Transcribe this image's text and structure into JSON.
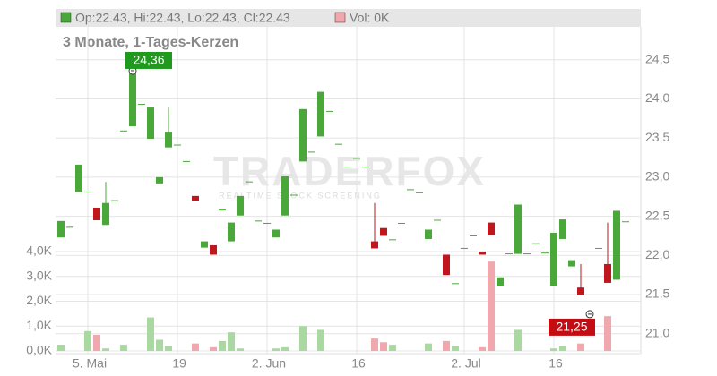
{
  "chart_data": {
    "type": "candlestick",
    "subtitle": "3 Monate, 1-Tages-Kerzen",
    "header": {
      "ohlc": "Op:22.43, Hi:22.43, Lo:22.43, Cl:22.43",
      "volume": "Vol: 0K"
    },
    "watermark": "TRADERFOX",
    "watermark_sub": "REALTIME STOCK SCREENING",
    "up_color": "#4aa83a",
    "down_color": "#c0161d",
    "up_volume_color": "#a9d9a0",
    "down_volume_color": "#f0a7ae",
    "categories": [
      null,
      null,
      null,
      "5. Mai",
      null,
      null,
      null,
      null,
      null,
      null,
      null,
      null,
      null,
      "19",
      null,
      null,
      null,
      null,
      null,
      null,
      null,
      null,
      null,
      "2. Jun",
      null,
      null,
      null,
      null,
      null,
      null,
      null,
      null,
      null,
      "16",
      null,
      null,
      null,
      null,
      null,
      null,
      null,
      null,
      null,
      null,
      null,
      "2. Jul",
      null,
      null,
      null,
      null,
      null,
      null,
      null,
      null,
      null,
      "16",
      null,
      null,
      null,
      null,
      null,
      null,
      null,
      null
    ],
    "open": [
      22.23,
      22.36,
      22.81,
      22.81,
      22.61,
      22.39,
      22.7,
      23.59,
      23.65,
      23.93,
      23.49,
      22.92,
      23.38,
      23.41,
      23.2,
      22.76,
      22.1,
      22.13,
      22.58,
      22.18,
      22.51,
      22.94,
      22.44,
      22.41,
      22.23,
      22.51,
      22.77,
      23.2,
      23.32,
      23.52,
      23.84,
      23.42,
      23.13,
      23.24,
      23.13,
      22.18,
      22.35,
      22.2,
      22.41,
      22.84,
      22.8,
      22.21,
      22.45,
      22.01,
      21.64,
      22.09,
      22.25,
      22.05,
      22.42,
      21.61,
      22.02,
      22.02,
      22.02,
      22.15,
      22.03,
      21.61,
      22.21,
      21.86,
      21.59,
      21.25,
      22.09,
      21.89,
      21.69,
      22.43
    ],
    "high": [
      22.44,
      22.36,
      23.16,
      22.81,
      22.61,
      22.94,
      22.7,
      23.59,
      24.36,
      23.93,
      23.89,
      23.0,
      23.89,
      23.41,
      23.2,
      22.76,
      22.18,
      22.13,
      22.58,
      22.42,
      22.76,
      22.94,
      22.44,
      22.41,
      22.33,
      23.01,
      22.77,
      23.87,
      23.32,
      24.09,
      23.84,
      23.42,
      23.13,
      23.24,
      23.13,
      22.67,
      22.35,
      22.2,
      22.41,
      22.84,
      22.8,
      22.33,
      22.45,
      22.01,
      21.64,
      22.09,
      22.25,
      22.05,
      22.42,
      21.72,
      22.02,
      22.65,
      22.02,
      22.15,
      22.03,
      22.29,
      22.46,
      21.94,
      21.89,
      21.25,
      22.09,
      22.42,
      22.57,
      22.43
    ],
    "low": [
      22.23,
      22.36,
      22.81,
      22.81,
      22.45,
      22.39,
      22.7,
      23.59,
      23.65,
      23.93,
      23.49,
      22.92,
      23.38,
      23.41,
      23.2,
      22.7,
      22.1,
      22.01,
      22.58,
      22.18,
      22.51,
      22.94,
      22.44,
      22.41,
      22.23,
      22.51,
      22.77,
      23.2,
      23.32,
      23.52,
      23.84,
      23.42,
      23.13,
      23.24,
      23.13,
      22.09,
      22.25,
      22.2,
      22.41,
      22.84,
      22.8,
      22.21,
      22.45,
      21.75,
      21.64,
      22.09,
      22.25,
      22.01,
      22.26,
      21.61,
      22.02,
      22.02,
      22.02,
      22.15,
      22.03,
      21.61,
      22.21,
      21.86,
      21.49,
      21.25,
      22.09,
      21.65,
      21.69,
      22.43
    ],
    "close": [
      22.44,
      22.36,
      23.16,
      22.81,
      22.45,
      22.67,
      22.7,
      23.59,
      24.36,
      23.93,
      23.89,
      23.0,
      23.57,
      23.41,
      23.2,
      22.7,
      22.18,
      22.01,
      22.58,
      22.42,
      22.76,
      22.94,
      22.44,
      22.41,
      22.33,
      23.01,
      22.77,
      23.87,
      23.32,
      24.09,
      23.84,
      23.42,
      23.13,
      23.24,
      23.13,
      22.09,
      22.25,
      22.2,
      22.41,
      22.84,
      22.8,
      22.33,
      22.45,
      21.75,
      21.64,
      22.09,
      22.25,
      22.01,
      22.26,
      21.72,
      22.02,
      22.65,
      22.02,
      22.15,
      22.03,
      22.29,
      22.46,
      21.94,
      21.49,
      21.25,
      22.09,
      21.65,
      22.57,
      22.43
    ],
    "volume": [
      250,
      0,
      0,
      800,
      650,
      100,
      0,
      250,
      0,
      0,
      1350,
      450,
      200,
      0,
      0,
      300,
      0,
      150,
      400,
      750,
      100,
      0,
      0,
      0,
      100,
      150,
      0,
      1000,
      0,
      850,
      0,
      0,
      0,
      0,
      0,
      500,
      350,
      250,
      0,
      0,
      0,
      300,
      0,
      400,
      200,
      0,
      0,
      150,
      3600,
      0,
      0,
      850,
      0,
      0,
      0,
      100,
      200,
      0,
      300,
      0,
      0,
      1400,
      0,
      0
    ],
    "annotations": [
      {
        "value": 24.36,
        "label": "24,36",
        "kind": "high"
      },
      {
        "value": 21.25,
        "label": "21,25",
        "kind": "low"
      }
    ],
    "ylim": [
      20.78,
      24.92
    ],
    "yticks": [
      {
        "value": 21,
        "label": "21,0"
      },
      {
        "value": 21.5,
        "label": "21,5"
      },
      {
        "value": 22,
        "label": "22,0"
      },
      {
        "value": 22.5,
        "label": "22,5"
      },
      {
        "value": 23,
        "label": "23,0"
      },
      {
        "value": 23.5,
        "label": "23,5"
      },
      {
        "value": 24,
        "label": "24,0"
      },
      {
        "value": 24.5,
        "label": "24,5"
      }
    ],
    "vlim": [
      0,
      13050
    ],
    "vticks": [
      {
        "value": 0,
        "label": "0,0K"
      },
      {
        "value": 1000,
        "label": "1,0K"
      },
      {
        "value": 2000,
        "label": "2,0K"
      },
      {
        "value": 3000,
        "label": "3,0K"
      },
      {
        "value": 4000,
        "label": "4,0K"
      }
    ],
    "grid": true
  }
}
